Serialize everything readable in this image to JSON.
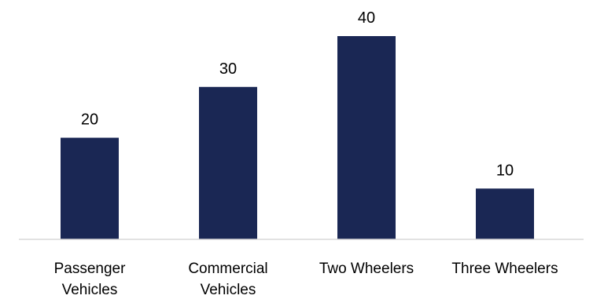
{
  "chart_data": {
    "type": "bar",
    "categories": [
      [
        "Passenger",
        "Vehicles"
      ],
      [
        "Commercial",
        "Vehicles"
      ],
      [
        "Two Wheelers"
      ],
      [
        "Three Wheelers"
      ]
    ],
    "values": [
      20,
      30,
      40,
      10
    ],
    "data_labels": [
      "20",
      "30",
      "40",
      "10"
    ],
    "title": "",
    "xlabel": "",
    "ylabel": "",
    "ylim": [
      0,
      40
    ],
    "bar_color": "#1a2754",
    "axis_color": "#d9d9d9",
    "grid": false,
    "legend": "none"
  }
}
